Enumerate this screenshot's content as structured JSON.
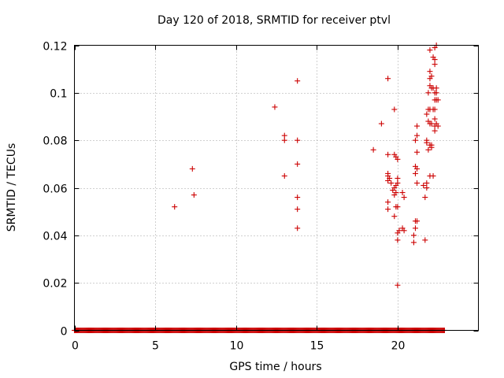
{
  "chart_data": {
    "type": "scatter",
    "title": "Day 120 of 2018, SRMTID for receiver ptvl",
    "xlabel": "GPS time / hours",
    "ylabel": "SRMTID / TECUs",
    "xlim": [
      0,
      25
    ],
    "ylim": [
      0,
      0.12
    ],
    "x_ticks": [
      0,
      5,
      10,
      15,
      20
    ],
    "x_tick_labels": [
      "0",
      "5",
      "10",
      "15",
      "20"
    ],
    "y_ticks": [
      0,
      0.02,
      0.04,
      0.06,
      0.08,
      0.1,
      0.12
    ],
    "y_tick_labels": [
      "0",
      "0.02",
      "0.04",
      "0.06",
      "0.08",
      "0.1",
      "0.12"
    ],
    "grid": true,
    "marker": "+",
    "color": "#cc0000",
    "zero_baseline": {
      "x_start": 0.0,
      "x_end": 22.9,
      "x_step": 0.05,
      "y": 0
    },
    "points": [
      [
        6.2,
        0.052
      ],
      [
        7.3,
        0.068
      ],
      [
        7.4,
        0.057
      ],
      [
        12.4,
        0.094
      ],
      [
        13.0,
        0.082
      ],
      [
        13.0,
        0.08
      ],
      [
        13.0,
        0.065
      ],
      [
        13.8,
        0.105
      ],
      [
        13.8,
        0.08
      ],
      [
        13.8,
        0.07
      ],
      [
        13.8,
        0.056
      ],
      [
        13.8,
        0.051
      ],
      [
        13.8,
        0.043
      ],
      [
        18.5,
        0.076
      ],
      [
        19.0,
        0.087
      ],
      [
        19.4,
        0.106
      ],
      [
        19.4,
        0.074
      ],
      [
        19.4,
        0.066
      ],
      [
        19.4,
        0.065
      ],
      [
        19.4,
        0.063
      ],
      [
        19.4,
        0.054
      ],
      [
        19.4,
        0.051
      ],
      [
        19.5,
        0.064
      ],
      [
        19.6,
        0.062
      ],
      [
        19.7,
        0.059
      ],
      [
        19.8,
        0.093
      ],
      [
        19.8,
        0.074
      ],
      [
        19.8,
        0.06
      ],
      [
        19.8,
        0.057
      ],
      [
        19.8,
        0.048
      ],
      [
        19.9,
        0.073
      ],
      [
        19.9,
        0.061
      ],
      [
        19.9,
        0.058
      ],
      [
        19.9,
        0.052
      ],
      [
        20.0,
        0.072
      ],
      [
        20.0,
        0.064
      ],
      [
        20.0,
        0.062
      ],
      [
        20.0,
        0.052
      ],
      [
        20.0,
        0.041
      ],
      [
        20.0,
        0.038
      ],
      [
        20.0,
        0.019
      ],
      [
        20.1,
        0.042
      ],
      [
        20.3,
        0.058
      ],
      [
        20.3,
        0.043
      ],
      [
        20.4,
        0.056
      ],
      [
        20.4,
        0.042
      ],
      [
        21.0,
        0.04
      ],
      [
        21.0,
        0.037
      ],
      [
        21.1,
        0.08
      ],
      [
        21.1,
        0.069
      ],
      [
        21.1,
        0.066
      ],
      [
        21.1,
        0.046
      ],
      [
        21.1,
        0.043
      ],
      [
        21.2,
        0.086
      ],
      [
        21.2,
        0.082
      ],
      [
        21.2,
        0.075
      ],
      [
        21.2,
        0.068
      ],
      [
        21.2,
        0.062
      ],
      [
        21.2,
        0.046
      ],
      [
        21.6,
        0.061
      ],
      [
        21.7,
        0.056
      ],
      [
        21.7,
        0.038
      ],
      [
        21.8,
        0.091
      ],
      [
        21.8,
        0.08
      ],
      [
        21.8,
        0.079
      ],
      [
        21.8,
        0.062
      ],
      [
        21.8,
        0.06
      ],
      [
        21.9,
        0.1
      ],
      [
        21.9,
        0.093
      ],
      [
        21.9,
        0.088
      ],
      [
        21.9,
        0.076
      ],
      [
        22.0,
        0.118
      ],
      [
        22.0,
        0.109
      ],
      [
        22.0,
        0.106
      ],
      [
        22.0,
        0.103
      ],
      [
        22.0,
        0.093
      ],
      [
        22.0,
        0.087
      ],
      [
        22.0,
        0.078
      ],
      [
        22.0,
        0.065
      ],
      [
        22.1,
        0.107
      ],
      [
        22.1,
        0.102
      ],
      [
        22.1,
        0.087
      ],
      [
        22.1,
        0.078
      ],
      [
        22.1,
        0.077
      ],
      [
        22.2,
        0.115
      ],
      [
        22.2,
        0.102
      ],
      [
        22.2,
        0.093
      ],
      [
        22.2,
        0.065
      ],
      [
        22.3,
        0.119
      ],
      [
        22.3,
        0.114
      ],
      [
        22.3,
        0.112
      ],
      [
        22.3,
        0.1
      ],
      [
        22.3,
        0.097
      ],
      [
        22.3,
        0.093
      ],
      [
        22.3,
        0.089
      ],
      [
        22.3,
        0.086
      ],
      [
        22.3,
        0.084
      ],
      [
        22.4,
        0.12
      ],
      [
        22.4,
        0.102
      ],
      [
        22.4,
        0.1
      ],
      [
        22.4,
        0.097
      ],
      [
        22.4,
        0.087
      ],
      [
        22.5,
        0.097
      ],
      [
        22.5,
        0.086
      ]
    ]
  }
}
